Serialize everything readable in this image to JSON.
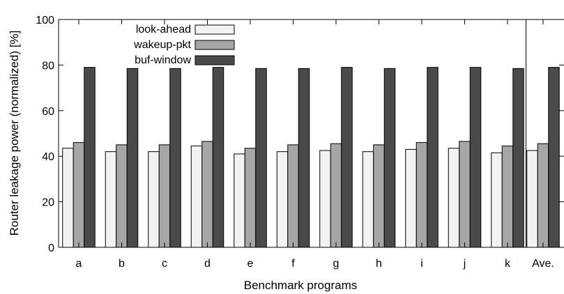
{
  "chart_data": {
    "type": "bar",
    "title": "",
    "xlabel": "Benchmark programs",
    "ylabel": "Router leakage power (normalized) [%]",
    "ylim": [
      0,
      100
    ],
    "yticks": [
      0,
      20,
      40,
      60,
      80,
      100
    ],
    "grid": false,
    "legend_position": "top-left",
    "categories": [
      "a",
      "b",
      "c",
      "d",
      "e",
      "f",
      "g",
      "h",
      "i",
      "j",
      "k",
      "Ave."
    ],
    "series": [
      {
        "name": "look-ahead",
        "color": "#f2f2f2",
        "values": [
          43.5,
          42,
          42,
          44.5,
          41,
          42,
          42.5,
          42,
          43,
          43.5,
          41.5,
          42.5
        ]
      },
      {
        "name": "wakeup-pkt",
        "color": "#a6a6a6",
        "values": [
          46,
          45,
          45,
          46.5,
          43.5,
          45,
          45.5,
          45,
          46,
          46.5,
          44.5,
          45.5
        ]
      },
      {
        "name": "buf-window",
        "color": "#4a4a4a",
        "values": [
          79,
          78.5,
          78.5,
          79,
          78.5,
          78.5,
          79,
          78.5,
          79,
          79,
          78.5,
          79
        ]
      }
    ]
  }
}
